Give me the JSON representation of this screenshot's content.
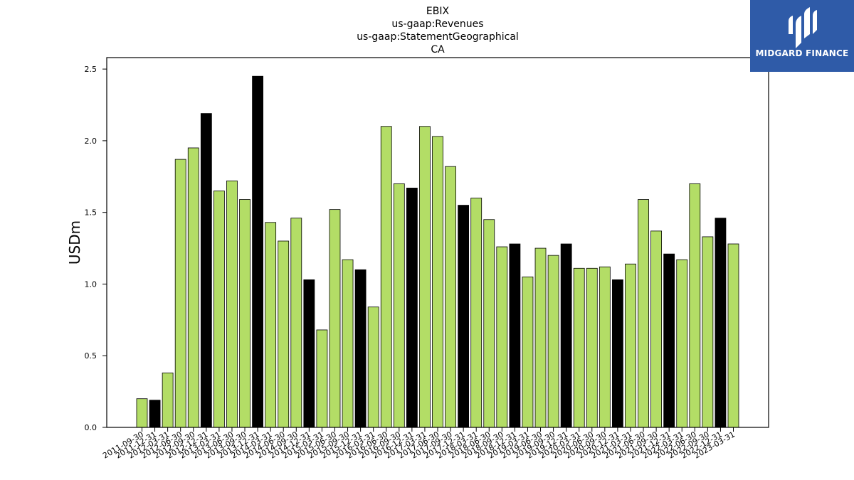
{
  "logo": {
    "text": "MIDGARD FINANCE",
    "background": "#2f5ba8"
  },
  "chart_data": {
    "type": "bar",
    "title_lines": [
      "EBIX",
      "us-gaap:Revenues",
      "us-gaap:StatementGeographical",
      "CA"
    ],
    "xlabel": "",
    "ylabel": "USDm",
    "ylim": [
      0,
      2.58
    ],
    "yticks": [
      "0.0",
      "0.5",
      "1.0",
      "1.5",
      "2.0",
      "2.5"
    ],
    "grid": false,
    "colors": {
      "default": "#b3dd66",
      "highlight": "#000000",
      "edge": "#000000"
    },
    "categories": [
      "2011-09-30",
      "2011-12-31",
      "2012-03-31",
      "2012-06-30",
      "2012-09-30",
      "2012-12-31",
      "2013-03-31",
      "2013-06-30",
      "2013-09-30",
      "2013-12-31",
      "2014-03-31",
      "2014-06-30",
      "2014-09-30",
      "2014-12-31",
      "2015-03-31",
      "2015-06-30",
      "2015-09-30",
      "2015-12-31",
      "2016-03-31",
      "2016-06-30",
      "2016-09-30",
      "2016-12-31",
      "2017-03-31",
      "2017-06-30",
      "2017-09-30",
      "2017-12-31",
      "2018-03-31",
      "2018-06-30",
      "2018-09-30",
      "2018-12-31",
      "2019-03-31",
      "2019-06-30",
      "2019-09-30",
      "2019-12-31",
      "2020-03-31",
      "2020-06-30",
      "2020-09-30",
      "2020-12-31",
      "2021-03-31",
      "2021-06-30",
      "2021-09-30",
      "2021-12-31",
      "2022-03-31",
      "2022-06-30",
      "2022-09-30",
      "2022-12-31",
      "2023-03-31"
    ],
    "values": [
      0.2,
      0.19,
      0.38,
      1.87,
      1.95,
      2.19,
      1.65,
      1.72,
      1.59,
      2.45,
      1.43,
      1.3,
      1.46,
      1.03,
      0.68,
      1.52,
      1.17,
      1.1,
      0.84,
      2.1,
      1.7,
      1.67,
      2.1,
      2.03,
      1.82,
      1.55,
      1.6,
      1.45,
      1.26,
      1.28,
      1.05,
      1.25,
      1.2,
      1.28,
      1.11,
      1.11,
      1.12,
      1.03,
      1.14,
      1.59,
      1.37,
      1.21,
      1.17,
      1.7,
      1.33,
      1.46,
      1.28
    ],
    "highlight": [
      false,
      true,
      false,
      false,
      false,
      true,
      false,
      false,
      false,
      true,
      false,
      false,
      false,
      true,
      false,
      false,
      false,
      true,
      false,
      false,
      false,
      true,
      false,
      false,
      false,
      true,
      false,
      false,
      false,
      true,
      false,
      false,
      false,
      true,
      false,
      false,
      false,
      true,
      false,
      false,
      false,
      true,
      false,
      false,
      false,
      true,
      false
    ]
  }
}
